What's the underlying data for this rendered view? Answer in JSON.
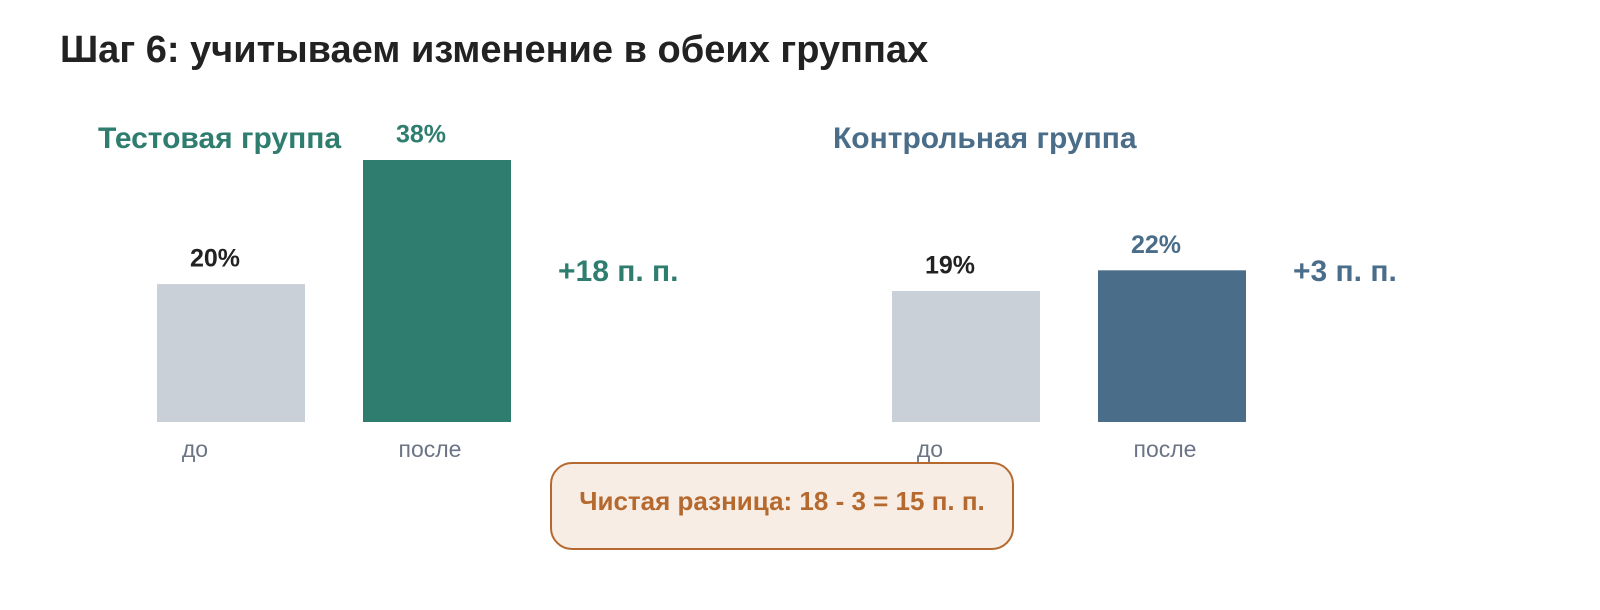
{
  "title": "Шаг 6: учитываем изменение в обеих группах",
  "chart_data": [
    {
      "type": "bar",
      "title": "Тестовая группа",
      "title_color": "#2e7d6f",
      "categories": [
        "до",
        "после"
      ],
      "values": [
        20,
        38
      ],
      "value_labels": [
        "20%",
        "38%"
      ],
      "colors": [
        "#c9d0d8",
        "#2e7d6f"
      ],
      "label_colors": [
        "#222222",
        "#2e7d6f"
      ],
      "annotation": "+18 п. п."
    },
    {
      "type": "bar",
      "title": "Контрольная группа",
      "title_color": "#4a6d8a",
      "categories": [
        "до",
        "после"
      ],
      "values": [
        19,
        22
      ],
      "value_labels": [
        "19%",
        "22%"
      ],
      "colors": [
        "#c9d0d8",
        "#4a6d8a"
      ],
      "label_colors": [
        "#222222",
        "#4a6d8a"
      ],
      "annotation": "+3 п. п."
    }
  ],
  "note": "Чистая разница: 18 - 3 = 15 п. п."
}
